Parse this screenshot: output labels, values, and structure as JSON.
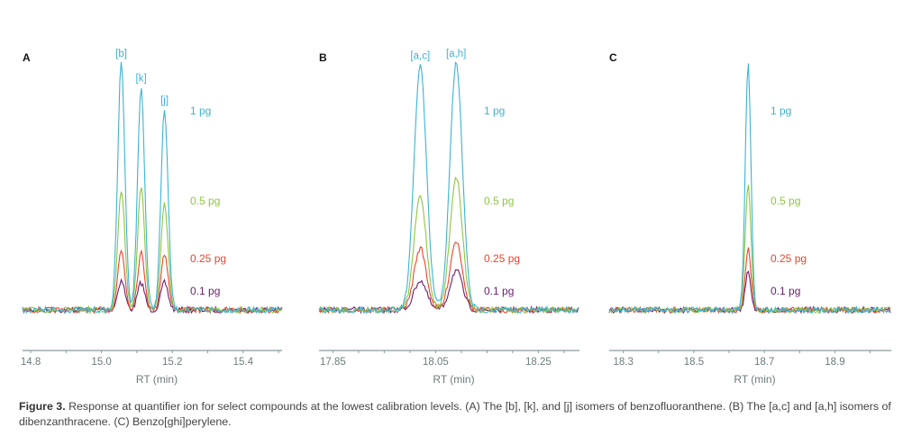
{
  "colors": {
    "1 pg": "#3cb3d4",
    "0.5 pg": "#8dc640",
    "0.25 pg": "#e8452c",
    "0.1 pg": "#6b1e6e",
    "axis": "#8a9a9a"
  },
  "caption": {
    "label": "Figure 3.",
    "text": " Response at quantifier ion for select compounds at the lowest calibration levels. (A) The [b], [k], and [j] isomers of benzofluoranthene. (B) The [a,c] and [a,h] isomers of dibenzanthracene. (C) Benzo[ghi]perylene."
  },
  "chart_data": [
    {
      "type": "line",
      "panel": "A",
      "xlabel": "RT (min)",
      "xlim": [
        14.777,
        15.51
      ],
      "xticks": [
        14.8,
        15.0,
        15.2,
        15.4
      ],
      "minor_step": 0.1,
      "ylabel": "",
      "grid": false,
      "peaks": [
        {
          "label": "[b]",
          "rt": 15.056
        },
        {
          "label": "[k]",
          "rt": 15.112
        },
        {
          "label": "[j]",
          "rt": 15.178
        }
      ],
      "peak_width": 0.01,
      "series": [
        {
          "name": "1 pg",
          "heights": [
            100,
            90,
            81
          ]
        },
        {
          "name": "0.5 pg",
          "heights": [
            49,
            49,
            43
          ]
        },
        {
          "name": "0.25 pg",
          "heights": [
            24,
            23,
            23
          ]
        },
        {
          "name": "0.1 pg",
          "heights": [
            12,
            11,
            11
          ]
        }
      ]
    },
    {
      "type": "line",
      "panel": "B",
      "xlabel": "RT (min)",
      "xlim": [
        17.823,
        18.33
      ],
      "xticks": [
        17.85,
        18.05,
        18.25
      ],
      "minor_step": 0.05,
      "ylabel": "",
      "grid": false,
      "peaks": [
        {
          "label": "[a,c]",
          "rt": 18.02
        },
        {
          "label": "[a,h]",
          "rt": 18.09
        }
      ],
      "peak_width": 0.012,
      "series": [
        {
          "name": "1 pg",
          "heights": [
            99,
            100
          ]
        },
        {
          "name": "0.5 pg",
          "heights": [
            46,
            54
          ]
        },
        {
          "name": "0.25 pg",
          "heights": [
            25,
            28
          ]
        },
        {
          "name": "0.1 pg",
          "heights": [
            12,
            16
          ]
        }
      ]
    },
    {
      "type": "line",
      "panel": "C",
      "xlabel": "RT (min)",
      "xlim": [
        18.26,
        19.06
      ],
      "xticks": [
        18.3,
        18.5,
        18.7,
        18.9
      ],
      "minor_step": 0.1,
      "ylabel": "",
      "grid": false,
      "peaks": [
        {
          "label": "",
          "rt": 18.654
        }
      ],
      "peak_width": 0.008,
      "series": [
        {
          "name": "1 pg",
          "heights": [
            100
          ]
        },
        {
          "name": "0.5 pg",
          "heights": [
            51
          ]
        },
        {
          "name": "0.25 pg",
          "heights": [
            25
          ]
        },
        {
          "name": "0.1 pg",
          "heights": [
            15
          ]
        }
      ]
    }
  ]
}
